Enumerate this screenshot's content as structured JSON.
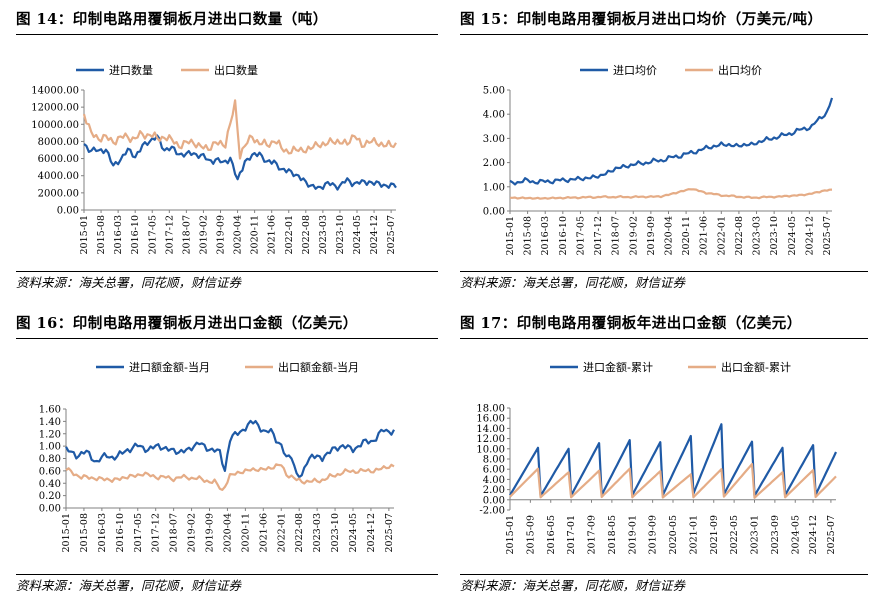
{
  "colors": {
    "import": "#1f5aa6",
    "export": "#e5ac86",
    "axis": "#808080"
  },
  "panels": [
    {
      "title": "图 14：印制电路用覆铜板月进出口数量（吨）",
      "source": "资料来源：海关总署，同花顺，财信证券"
    },
    {
      "title": "图 15：印制电路用覆铜板月进出口均价（万美元/吨）",
      "source": "资料来源：海关总署，同花顺，财信证券"
    },
    {
      "title": "图 16：印制电路用覆铜板月进出口金额（亿美元）",
      "source": "资料来源：海关总署，同花顺，财信证券"
    },
    {
      "title": "图 17：印制电路用覆铜板年进出口金额（亿美元）",
      "source": "资料来源：海关总署，同花顺，财信证券"
    }
  ],
  "chart_data": [
    {
      "type": "line",
      "x_start": "2015-01",
      "x_end": "2025-09",
      "xticks": [
        "2015-01",
        "2015-08",
        "2016-03",
        "2016-10",
        "2017-05",
        "2017-12",
        "2018-07",
        "2019-02",
        "2019-09",
        "2020-04",
        "2020-11",
        "2021-06",
        "2022-01",
        "2022-08",
        "2023-03",
        "2023-10",
        "2024-05",
        "2024-12",
        "2025-07"
      ],
      "yticks": [
        "0.00",
        "2000.00",
        "4000.00",
        "6000.00",
        "8000.00",
        "10000.00",
        "12000.00",
        "14000.00"
      ],
      "ylim": [
        0,
        14000
      ],
      "series": [
        {
          "name": "进口数量",
          "key": "import",
          "anchors": [
            [
              0,
              7700
            ],
            [
              3,
              7000
            ],
            [
              6,
              6800
            ],
            [
              9,
              7200
            ],
            [
              12,
              5000
            ],
            [
              15,
              6000
            ],
            [
              18,
              7000
            ],
            [
              21,
              6200
            ],
            [
              24,
              7500
            ],
            [
              27,
              8000
            ],
            [
              30,
              8600
            ],
            [
              33,
              7000
            ],
            [
              36,
              7200
            ],
            [
              39,
              6600
            ],
            [
              42,
              6400
            ],
            [
              45,
              6700
            ],
            [
              48,
              6300
            ],
            [
              51,
              5800
            ],
            [
              54,
              5900
            ],
            [
              57,
              5400
            ],
            [
              60,
              6200
            ],
            [
              63,
              3300
            ],
            [
              66,
              5800
            ],
            [
              69,
              6200
            ],
            [
              72,
              6700
            ],
            [
              75,
              5500
            ],
            [
              78,
              5700
            ],
            [
              81,
              4600
            ],
            [
              84,
              4700
            ],
            [
              87,
              3900
            ],
            [
              90,
              3700
            ],
            [
              93,
              2600
            ],
            [
              96,
              2700
            ],
            [
              99,
              2900
            ],
            [
              102,
              3000
            ],
            [
              105,
              2800
            ],
            [
              108,
              3400
            ],
            [
              111,
              3200
            ],
            [
              114,
              3100
            ],
            [
              117,
              3400
            ],
            [
              120,
              3000
            ],
            [
              128,
              2800
            ]
          ],
          "noise": 500
        },
        {
          "name": "出口数量",
          "key": "export",
          "anchors": [
            [
              0,
              11200
            ],
            [
              3,
              9000
            ],
            [
              6,
              8300
            ],
            [
              9,
              8500
            ],
            [
              12,
              8000
            ],
            [
              15,
              8400
            ],
            [
              18,
              8600
            ],
            [
              21,
              8300
            ],
            [
              24,
              8800
            ],
            [
              27,
              8900
            ],
            [
              30,
              8200
            ],
            [
              33,
              8700
            ],
            [
              36,
              8000
            ],
            [
              39,
              7600
            ],
            [
              42,
              7800
            ],
            [
              45,
              7900
            ],
            [
              48,
              7400
            ],
            [
              51,
              7100
            ],
            [
              54,
              7900
            ],
            [
              58,
              7600
            ],
            [
              62,
              12500
            ],
            [
              64,
              6400
            ],
            [
              66,
              7400
            ],
            [
              69,
              8700
            ],
            [
              72,
              7700
            ],
            [
              75,
              7600
            ],
            [
              78,
              8200
            ],
            [
              81,
              7100
            ],
            [
              84,
              7000
            ],
            [
              87,
              6800
            ],
            [
              90,
              7200
            ],
            [
              93,
              7000
            ],
            [
              96,
              7800
            ],
            [
              99,
              7600
            ],
            [
              102,
              8100
            ],
            [
              105,
              7900
            ],
            [
              108,
              7800
            ],
            [
              111,
              8700
            ],
            [
              114,
              7600
            ],
            [
              117,
              7900
            ],
            [
              120,
              8000
            ],
            [
              124,
              7400
            ],
            [
              128,
              7800
            ]
          ],
          "noise": 650
        }
      ]
    },
    {
      "type": "line",
      "x_start": "2015-01",
      "x_end": "2025-09",
      "xticks": [
        "2015-01",
        "2015-08",
        "2016-03",
        "2016-10",
        "2017-05",
        "2017-12",
        "2018-07",
        "2019-02",
        "2019-09",
        "2020-04",
        "2020-11",
        "2021-06",
        "2022-01",
        "2022-08",
        "2023-03",
        "2023-10",
        "2024-05",
        "2024-12",
        "2025-07"
      ],
      "yticks": [
        "0.00",
        "1.00",
        "2.00",
        "3.00",
        "4.00",
        "5.00"
      ],
      "ylim": [
        0,
        5
      ],
      "series": [
        {
          "name": "进口均价",
          "key": "import",
          "anchors": [
            [
              0,
              1.15
            ],
            [
              6,
              1.25
            ],
            [
              12,
              1.2
            ],
            [
              18,
              1.25
            ],
            [
              24,
              1.3
            ],
            [
              30,
              1.35
            ],
            [
              36,
              1.45
            ],
            [
              42,
              1.75
            ],
            [
              48,
              1.9
            ],
            [
              54,
              2.0
            ],
            [
              60,
              2.1
            ],
            [
              66,
              2.25
            ],
            [
              72,
              2.4
            ],
            [
              78,
              2.6
            ],
            [
              84,
              2.75
            ],
            [
              90,
              2.7
            ],
            [
              96,
              2.75
            ],
            [
              102,
              2.95
            ],
            [
              108,
              3.1
            ],
            [
              114,
              3.3
            ],
            [
              120,
              3.5
            ],
            [
              126,
              4.1
            ],
            [
              128,
              4.65
            ]
          ],
          "noise": 0.12
        },
        {
          "name": "出口均价",
          "key": "export",
          "anchors": [
            [
              0,
              0.55
            ],
            [
              12,
              0.52
            ],
            [
              24,
              0.55
            ],
            [
              36,
              0.58
            ],
            [
              48,
              0.58
            ],
            [
              60,
              0.6
            ],
            [
              66,
              0.75
            ],
            [
              72,
              0.92
            ],
            [
              78,
              0.75
            ],
            [
              84,
              0.65
            ],
            [
              96,
              0.55
            ],
            [
              108,
              0.6
            ],
            [
              118,
              0.68
            ],
            [
              124,
              0.82
            ],
            [
              128,
              0.88
            ]
          ],
          "noise": 0.04
        }
      ]
    },
    {
      "type": "line",
      "x_start": "2015-01",
      "x_end": "2025-09",
      "xticks": [
        "2015-01",
        "2015-08",
        "2016-03",
        "2016-10",
        "2017-05",
        "2017-12",
        "2018-07",
        "2019-02",
        "2019-09",
        "2020-04",
        "2020-11",
        "2021-06",
        "2022-01",
        "2022-08",
        "2023-03",
        "2023-10",
        "2024-05",
        "2024-12",
        "2025-07"
      ],
      "yticks": [
        "0.00",
        "0.20",
        "0.40",
        "0.60",
        "0.80",
        "1.00",
        "1.20",
        "1.40",
        "1.60"
      ],
      "ylim": [
        0,
        1.6
      ],
      "series": [
        {
          "name": "进口额金额-当月",
          "key": "import",
          "anchors": [
            [
              0,
              0.95
            ],
            [
              4,
              0.85
            ],
            [
              8,
              0.9
            ],
            [
              12,
              0.75
            ],
            [
              16,
              0.85
            ],
            [
              20,
              0.82
            ],
            [
              24,
              0.95
            ],
            [
              28,
              1.0
            ],
            [
              32,
              0.95
            ],
            [
              36,
              1.0
            ],
            [
              40,
              0.95
            ],
            [
              44,
              0.9
            ],
            [
              48,
              0.95
            ],
            [
              52,
              1.05
            ],
            [
              56,
              0.95
            ],
            [
              60,
              0.9
            ],
            [
              62,
              0.62
            ],
            [
              64,
              1.1
            ],
            [
              68,
              1.25
            ],
            [
              72,
              1.35
            ],
            [
              74,
              1.4
            ],
            [
              76,
              1.3
            ],
            [
              78,
              1.2
            ],
            [
              80,
              1.25
            ],
            [
              84,
              1.0
            ],
            [
              86,
              0.8
            ],
            [
              88,
              0.85
            ],
            [
              90,
              0.55
            ],
            [
              92,
              0.5
            ],
            [
              94,
              0.75
            ],
            [
              96,
              0.85
            ],
            [
              100,
              0.8
            ],
            [
              104,
              0.95
            ],
            [
              108,
              1.0
            ],
            [
              112,
              0.95
            ],
            [
              116,
              1.05
            ],
            [
              120,
              1.1
            ],
            [
              124,
              1.25
            ],
            [
              128,
              1.25
            ]
          ],
          "noise": 0.07
        },
        {
          "name": "出口额金额-当月",
          "key": "export",
          "anchors": [
            [
              0,
              0.62
            ],
            [
              6,
              0.5
            ],
            [
              12,
              0.48
            ],
            [
              18,
              0.45
            ],
            [
              24,
              0.5
            ],
            [
              30,
              0.55
            ],
            [
              36,
              0.5
            ],
            [
              42,
              0.48
            ],
            [
              48,
              0.5
            ],
            [
              54,
              0.45
            ],
            [
              58,
              0.42
            ],
            [
              61,
              0.28
            ],
            [
              64,
              0.52
            ],
            [
              68,
              0.58
            ],
            [
              72,
              0.62
            ],
            [
              76,
              0.62
            ],
            [
              80,
              0.65
            ],
            [
              84,
              0.7
            ],
            [
              86,
              0.55
            ],
            [
              90,
              0.45
            ],
            [
              96,
              0.42
            ],
            [
              102,
              0.48
            ],
            [
              108,
              0.58
            ],
            [
              114,
              0.6
            ],
            [
              120,
              0.6
            ],
            [
              125,
              0.66
            ],
            [
              128,
              0.68
            ]
          ],
          "noise": 0.05
        }
      ]
    },
    {
      "type": "line",
      "x_start": "2015-01",
      "x_end": "2025-09",
      "xticks": [
        "2015-01",
        "2015-09",
        "2016-05",
        "2017-01",
        "2017-09",
        "2018-05",
        "2019-01",
        "2019-09",
        "2020-05",
        "2021-01",
        "2021-09",
        "2022-05",
        "2023-01",
        "2023-09",
        "2024-05",
        "2024-12",
        "2025-07"
      ],
      "yticks": [
        "-2.00",
        "0.00",
        "2.00",
        "4.00",
        "6.00",
        "8.00",
        "10.00",
        "12.00",
        "14.00",
        "16.00",
        "18.00"
      ],
      "ylim": [
        -2,
        18
      ],
      "series": [
        {
          "name": "进口金额-累计",
          "key": "import",
          "year_totals": [
            10.2,
            10.0,
            11.1,
            11.7,
            11.3,
            12.5,
            14.8,
            11.4,
            10.2,
            10.7,
            12.5,
            12.0
          ],
          "year_starts": [
            0.9,
            0.75,
            0.85,
            0.95,
            0.9,
            0.95,
            1.2,
            1.1,
            0.8,
            0.9,
            1.0,
            1.2
          ]
        },
        {
          "name": "出口金额-累计",
          "key": "export",
          "year_totals": [
            6.1,
            5.4,
            5.7,
            6.1,
            5.6,
            5.0,
            6.0,
            7.0,
            5.4,
            5.8,
            6.1,
            6.1
          ],
          "year_starts": [
            0.6,
            0.5,
            0.5,
            0.55,
            0.5,
            0.45,
            0.5,
            0.6,
            0.4,
            0.5,
            0.55,
            0.6
          ]
        }
      ]
    }
  ]
}
